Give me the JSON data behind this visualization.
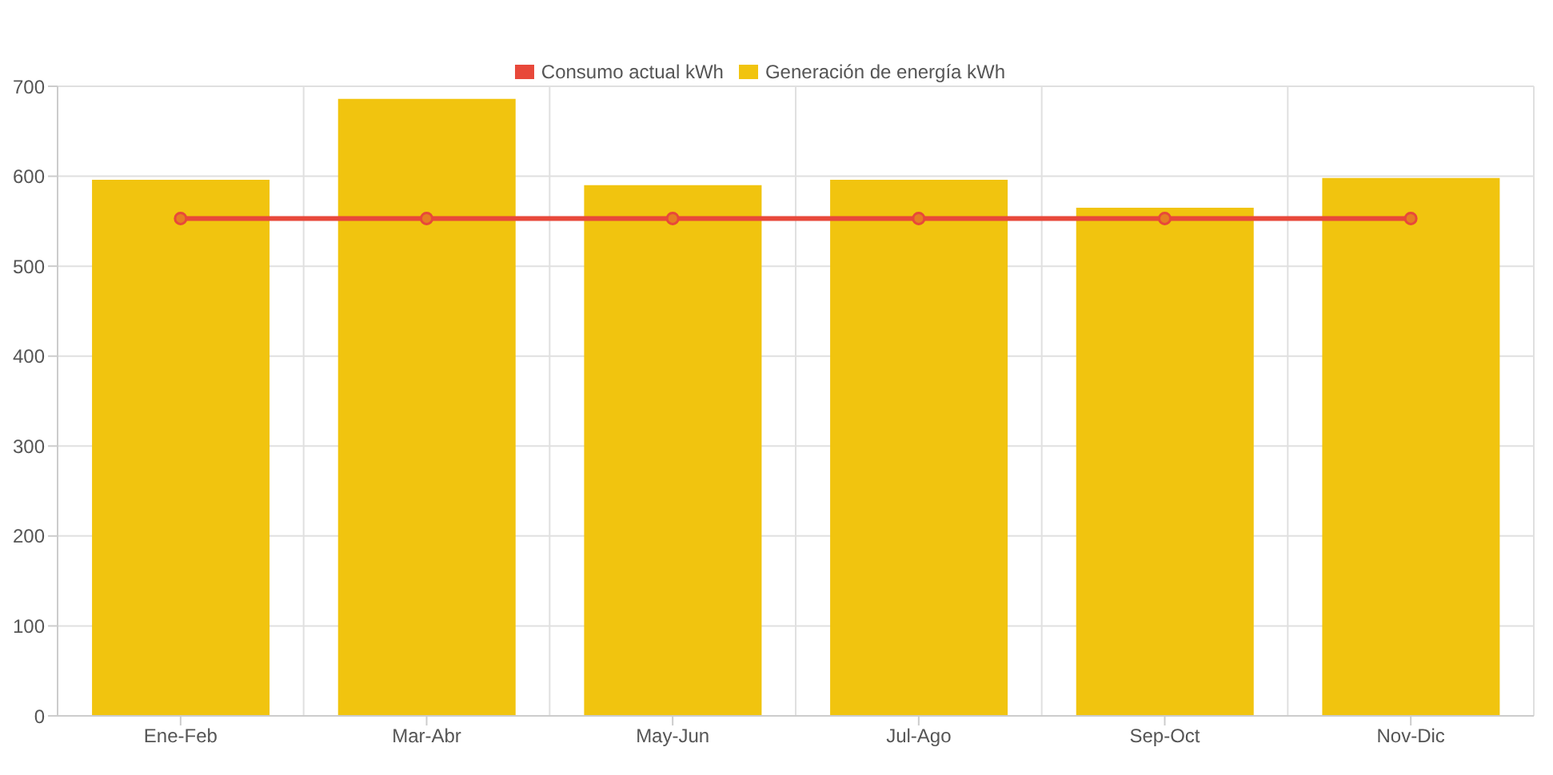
{
  "chart_data": {
    "type": "bar",
    "categories": [
      "Ene-Feb",
      "Mar-Abr",
      "May-Jun",
      "Jul-Ago",
      "Sep-Oct",
      "Nov-Dic"
    ],
    "series": [
      {
        "name": "Consumo actual kWh",
        "type": "line",
        "color": "#e8483a",
        "values": [
          553,
          553,
          553,
          553,
          553,
          553
        ]
      },
      {
        "name": "Generación de energía kWh",
        "color": "#f1c40f",
        "values": [
          596,
          686,
          590,
          596,
          565,
          598
        ]
      }
    ],
    "ylim": [
      0,
      700
    ],
    "yticks": [
      0,
      100,
      200,
      300,
      400,
      500,
      600,
      700
    ],
    "grid": true,
    "legend": "top",
    "marker": "circle"
  }
}
